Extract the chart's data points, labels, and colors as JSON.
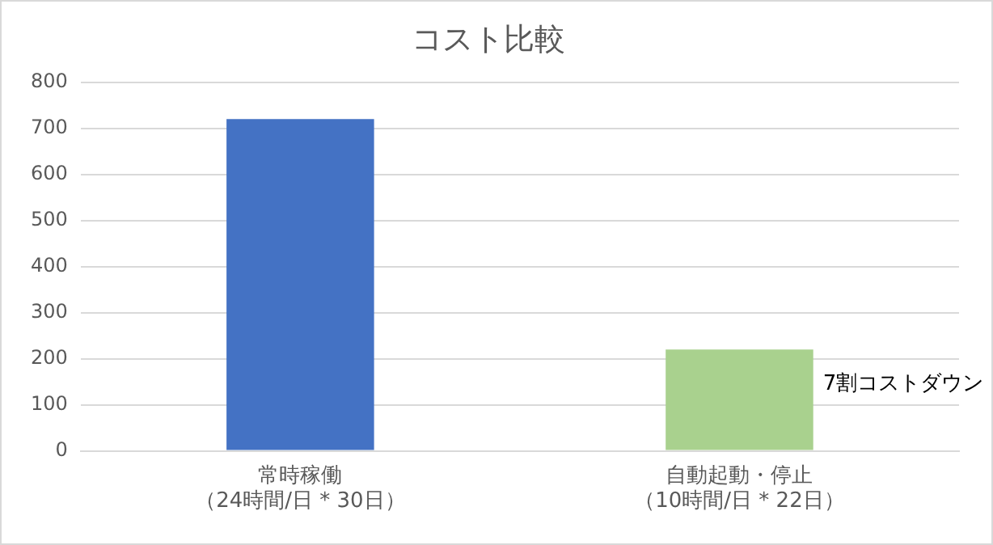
{
  "chart_data": {
    "type": "bar",
    "title": "コスト比較",
    "categories": [
      "常時稼働（24時間/日 * 30日）",
      "自動起動・停止（10時間/日 * 22日）"
    ],
    "colors": [
      "#4472c4",
      "#a9d18e"
    ],
    "values": [
      720,
      220
    ],
    "ylim": [
      0,
      800
    ],
    "yticks": [
      0,
      100,
      200,
      300,
      400,
      500,
      600,
      700,
      800
    ],
    "grid": "y",
    "legend": false,
    "annotations": [
      "7割コストダウン"
    ]
  }
}
